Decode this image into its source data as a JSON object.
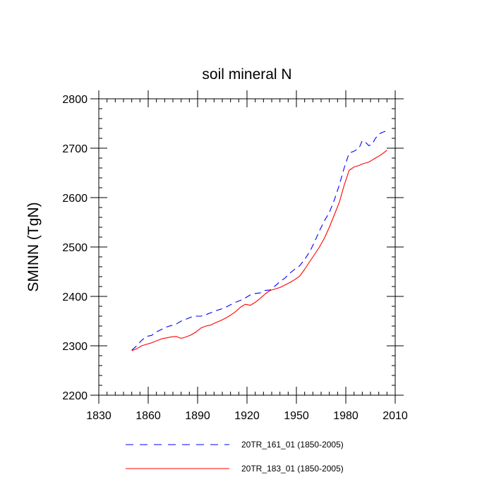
{
  "chart_data": {
    "type": "line",
    "title": "soil mineral N",
    "xlabel": "",
    "ylabel": "SMINN  (TgN)",
    "xlim": [
      1830,
      2010
    ],
    "ylim": [
      2200,
      2800
    ],
    "x_ticks": [
      1830,
      1860,
      1890,
      1920,
      1950,
      1980,
      2010
    ],
    "y_ticks": [
      2200,
      2300,
      2400,
      2500,
      2600,
      2700,
      2800
    ],
    "x_minor_step": 5,
    "y_minor_step": 20,
    "legend_position": "bottom",
    "series": [
      {
        "name": "20TR_161_01 (1850-2005)",
        "color": "#0000ff",
        "style": "dashed",
        "x": [
          1850,
          1853,
          1856,
          1859,
          1862,
          1865,
          1868,
          1871,
          1874,
          1877,
          1880,
          1883,
          1886,
          1889,
          1892,
          1895,
          1898,
          1901,
          1904,
          1907,
          1910,
          1913,
          1916,
          1919,
          1922,
          1925,
          1928,
          1931,
          1934,
          1937,
          1940,
          1943,
          1946,
          1949,
          1952,
          1955,
          1958,
          1961,
          1964,
          1967,
          1970,
          1973,
          1976,
          1979,
          1982,
          1985,
          1988,
          1990,
          1992,
          1994,
          1996,
          1998,
          2000,
          2002,
          2005
        ],
        "y": [
          2291,
          2300,
          2311,
          2319,
          2321,
          2328,
          2333,
          2338,
          2341,
          2344,
          2350,
          2354,
          2358,
          2360,
          2360,
          2363,
          2367,
          2371,
          2374,
          2378,
          2383,
          2388,
          2392,
          2397,
          2403,
          2406,
          2407,
          2412,
          2413,
          2421,
          2430,
          2437,
          2447,
          2455,
          2462,
          2475,
          2490,
          2510,
          2533,
          2553,
          2570,
          2595,
          2625,
          2660,
          2690,
          2694,
          2700,
          2715,
          2712,
          2705,
          2708,
          2720,
          2728,
          2732,
          2735
        ]
      },
      {
        "name": "20TR_183_01 (1850-2005)",
        "color": "#ff0000",
        "style": "solid",
        "x": [
          1850,
          1853,
          1856,
          1859,
          1862,
          1865,
          1868,
          1871,
          1874,
          1877,
          1880,
          1883,
          1886,
          1889,
          1892,
          1895,
          1898,
          1901,
          1904,
          1907,
          1910,
          1913,
          1916,
          1919,
          1922,
          1925,
          1928,
          1931,
          1934,
          1937,
          1940,
          1943,
          1946,
          1949,
          1952,
          1955,
          1958,
          1961,
          1964,
          1967,
          1970,
          1973,
          1976,
          1979,
          1982,
          1985,
          1988,
          1990,
          1992,
          1994,
          1996,
          1998,
          2000,
          2002,
          2005
        ],
        "y": [
          2290,
          2294,
          2300,
          2303,
          2306,
          2310,
          2314,
          2316,
          2318,
          2319,
          2315,
          2318,
          2322,
          2328,
          2336,
          2340,
          2342,
          2347,
          2351,
          2356,
          2362,
          2369,
          2378,
          2384,
          2382,
          2388,
          2396,
          2405,
          2412,
          2415,
          2418,
          2423,
          2428,
          2434,
          2441,
          2455,
          2470,
          2485,
          2500,
          2518,
          2540,
          2565,
          2590,
          2625,
          2655,
          2662,
          2665,
          2668,
          2670,
          2672,
          2676,
          2680,
          2684,
          2688,
          2696
        ]
      }
    ]
  }
}
